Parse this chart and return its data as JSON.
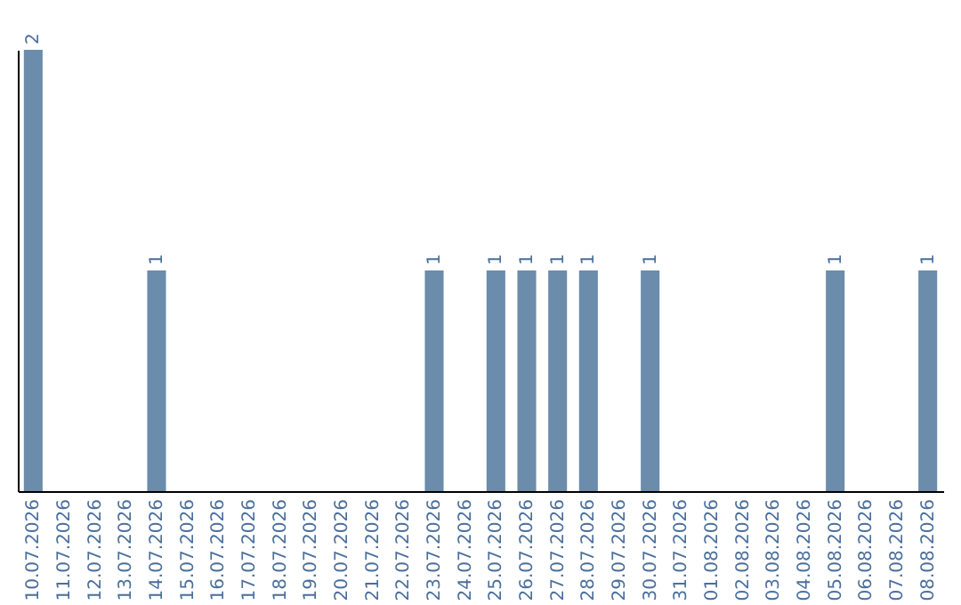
{
  "chart_data": {
    "type": "bar",
    "categories": [
      "10.07.2026",
      "11.07.2026",
      "12.07.2026",
      "13.07.2026",
      "14.07.2026",
      "15.07.2026",
      "16.07.2026",
      "17.07.2026",
      "18.07.2026",
      "19.07.2026",
      "20.07.2026",
      "21.07.2026",
      "22.07.2026",
      "23.07.2026",
      "24.07.2026",
      "25.07.2026",
      "26.07.2026",
      "27.07.2026",
      "28.07.2026",
      "29.07.2026",
      "30.07.2026",
      "31.07.2026",
      "01.08.2026",
      "02.08.2026",
      "03.08.2026",
      "04.08.2026",
      "05.08.2026",
      "06.08.2026",
      "07.08.2026",
      "08.08.2026"
    ],
    "values": [
      2,
      0,
      0,
      0,
      1,
      0,
      0,
      0,
      0,
      0,
      0,
      0,
      0,
      1,
      0,
      1,
      1,
      1,
      1,
      0,
      1,
      0,
      0,
      0,
      0,
      0,
      1,
      0,
      0,
      1
    ],
    "value_labels": [
      "2",
      null,
      null,
      null,
      "1",
      null,
      null,
      null,
      null,
      null,
      null,
      null,
      null,
      "1",
      null,
      "1",
      "1",
      "1",
      "1",
      null,
      "1",
      null,
      null,
      null,
      null,
      null,
      "1",
      null,
      null,
      "1"
    ],
    "color": "#6b8cab",
    "tick_labels": "x",
    "grid": false
  }
}
